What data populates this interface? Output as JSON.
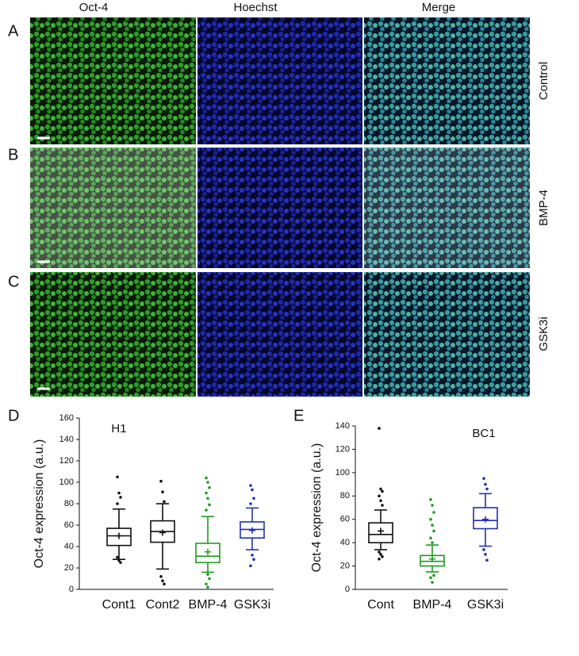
{
  "figure": {
    "column_headers": [
      "Oct-4",
      "Hoechst",
      "Merge"
    ],
    "row_labels": [
      "Control",
      "BMP-4",
      "GSK3i"
    ],
    "panel_labels": [
      "A",
      "B",
      "C"
    ]
  },
  "chart_data": [
    {
      "type": "box",
      "panel_label": "D",
      "title": "H1",
      "ylabel": "Oct-4 expression (a.u.)",
      "categories": [
        "Cont1",
        "Cont2",
        "BMP-4",
        "GSK3i"
      ],
      "colors": [
        "#111111",
        "#111111",
        "#1f9a1f",
        "#2233aa"
      ],
      "ylim": [
        0,
        160
      ],
      "yticks": [
        0,
        20,
        40,
        60,
        80,
        100,
        120,
        140,
        160
      ],
      "boxes": [
        {
          "whisker_low": 28,
          "q1": 41,
          "median": 50,
          "q3": 57,
          "whisker_high": 75,
          "mean": 50,
          "outliers": [
            105,
            90,
            86,
            80,
            27,
            25,
            30
          ]
        },
        {
          "whisker_low": 19,
          "q1": 44,
          "median": 54,
          "q3": 64,
          "whisker_high": 80,
          "mean": 53,
          "outliers": [
            101,
            91,
            82,
            12,
            8,
            5
          ]
        },
        {
          "whisker_low": 16,
          "q1": 25,
          "median": 31,
          "q3": 43,
          "whisker_high": 68,
          "mean": 35,
          "outliers": [
            104,
            100,
            95,
            90,
            85,
            79,
            74,
            14,
            10,
            5,
            2
          ]
        },
        {
          "whisker_low": 37,
          "q1": 48,
          "median": 56,
          "q3": 63,
          "whisker_high": 76,
          "mean": 55,
          "outliers": [
            97,
            93,
            85,
            80,
            32,
            28,
            22
          ]
        }
      ]
    },
    {
      "type": "box",
      "panel_label": "E",
      "title": "BC1",
      "ylabel": "Oct-4 expression (a.u.)",
      "categories": [
        "Cont",
        "BMP-4",
        "GSK3i"
      ],
      "colors": [
        "#111111",
        "#1f9a1f",
        "#2233aa"
      ],
      "ylim": [
        0,
        140
      ],
      "yticks": [
        0,
        20,
        40,
        60,
        80,
        100,
        120,
        140
      ],
      "boxes": [
        {
          "whisker_low": 34,
          "q1": 40,
          "median": 47,
          "q3": 57,
          "whisker_high": 68,
          "mean": 50,
          "outliers": [
            138,
            86,
            84,
            80,
            76,
            72,
            32,
            30,
            28,
            26
          ]
        },
        {
          "whisker_low": 15,
          "q1": 20,
          "median": 24,
          "q3": 29,
          "whisker_high": 38,
          "mean": 26,
          "outliers": [
            77,
            72,
            66,
            60,
            55,
            50,
            44,
            40,
            12,
            10,
            6
          ]
        },
        {
          "whisker_low": 37,
          "q1": 52,
          "median": 59,
          "q3": 70,
          "whisker_high": 82,
          "mean": 60,
          "outliers": [
            95,
            90,
            86,
            34,
            30,
            25
          ]
        }
      ]
    }
  ]
}
